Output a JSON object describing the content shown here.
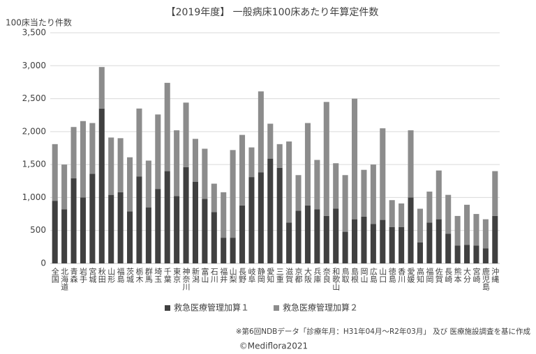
{
  "chart_data": {
    "type": "stacked-bar",
    "title": "【2019年度】 一般病床100床あたり年算定件数",
    "ylabel": "100床当たり件数",
    "categories": [
      "全国",
      "北海道",
      "青森",
      "岩手",
      "宮城",
      "秋田",
      "山形",
      "福島",
      "茨城",
      "栃木",
      "群馬",
      "埼玉",
      "千葉",
      "東京",
      "神奈川",
      "新潟",
      "富山",
      "石川",
      "福井",
      "山梨",
      "長野",
      "岐阜",
      "静岡",
      "愛知",
      "三重",
      "滋賀",
      "京都",
      "大阪",
      "兵庫",
      "奈良",
      "和歌山",
      "鳥取",
      "島根",
      "岡山",
      "広島",
      "山口",
      "徳島",
      "香川",
      "愛媛",
      "高知",
      "福岡",
      "佐賀",
      "長崎",
      "熊本",
      "大分",
      "宮崎",
      "鹿児島",
      "沖縄"
    ],
    "series": [
      {
        "name": "救急医療管理加算１",
        "color": "#404040",
        "values": [
          950,
          820,
          1290,
          1000,
          1360,
          2350,
          1040,
          1080,
          790,
          1320,
          850,
          1130,
          1400,
          1020,
          1460,
          1240,
          980,
          780,
          390,
          390,
          880,
          1310,
          1380,
          1590,
          1450,
          620,
          800,
          880,
          820,
          720,
          830,
          480,
          670,
          710,
          600,
          660,
          550,
          550,
          1000,
          320,
          620,
          670,
          450,
          270,
          280,
          270,
          230,
          720
        ]
      },
      {
        "name": "救急医療管理加算２",
        "color": "#8c8c8c",
        "values": [
          860,
          680,
          780,
          1160,
          770,
          630,
          870,
          820,
          820,
          1030,
          710,
          1130,
          1340,
          1000,
          980,
          650,
          760,
          430,
          690,
          1330,
          1070,
          450,
          1230,
          530,
          360,
          1230,
          540,
          1250,
          750,
          1730,
          690,
          860,
          1830,
          710,
          900,
          1390,
          410,
          360,
          1020,
          510,
          470,
          740,
          590,
          450,
          610,
          480,
          440,
          680
        ]
      }
    ],
    "ylim": [
      0,
      3500
    ],
    "yticks": [
      0,
      500,
      {
        "value": 1000,
        "label": "1,000"
      },
      {
        "value": 1500,
        "label": "1,500"
      },
      {
        "value": 2000,
        "label": "2,000"
      },
      {
        "value": 2500,
        "label": "2,500"
      },
      {
        "value": 3000,
        "label": "3,000"
      },
      {
        "value": 3500,
        "label": "3,500"
      }
    ],
    "grid": true,
    "legend": "bottom",
    "note": "※第6回NDBデータ「診療年月：H31年04月～R2年03月」 及び 医療施設調査を基に作成",
    "copyright": "©Mediflora2021"
  }
}
